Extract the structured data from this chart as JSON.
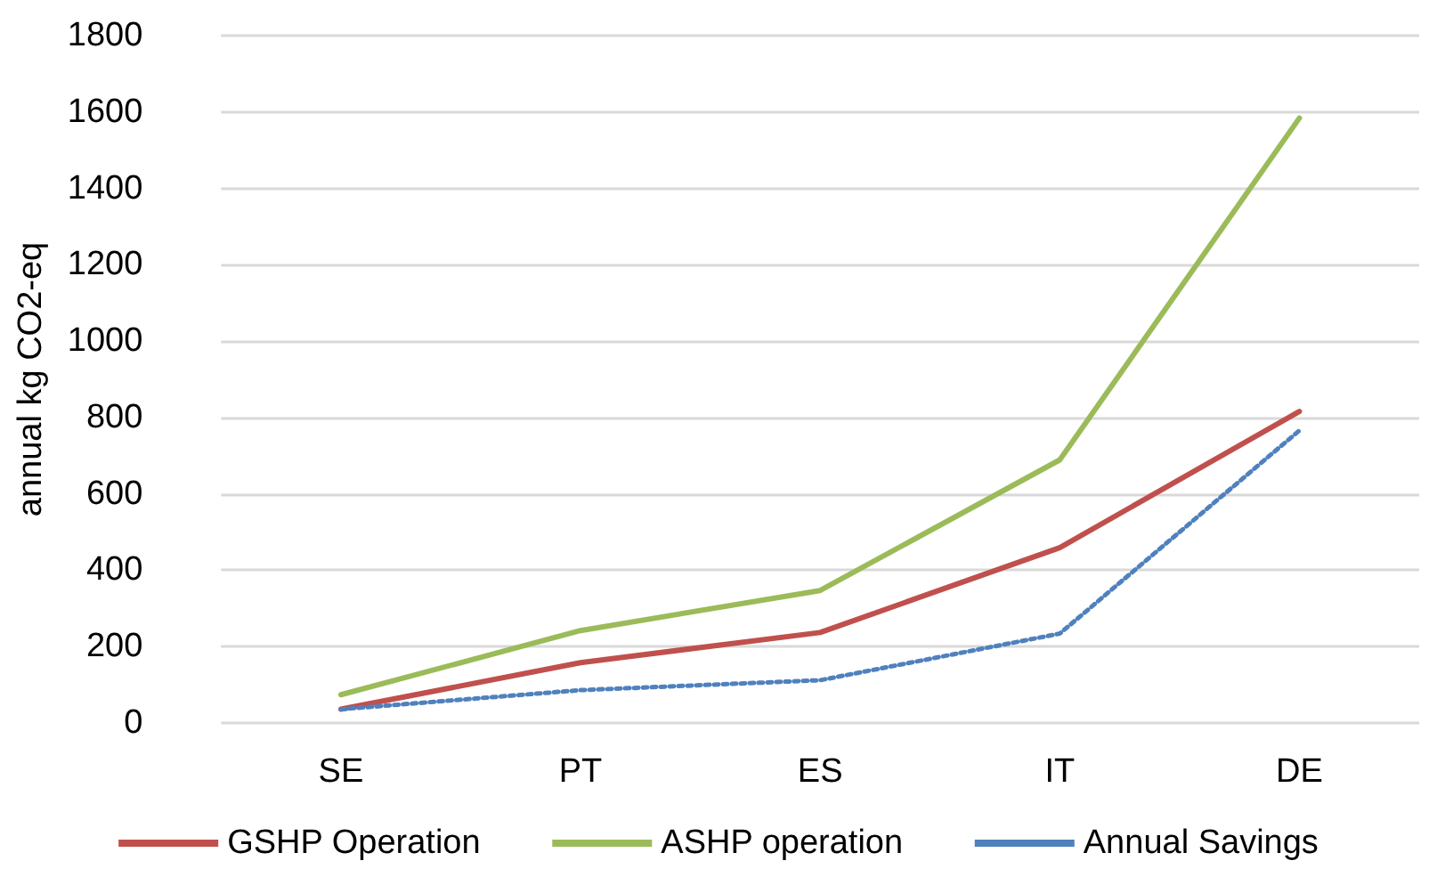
{
  "chart_data": {
    "type": "line",
    "ylabel": "annual kg CO2-eq",
    "categories": [
      "SE",
      "PT",
      "ES",
      "IT",
      "DE"
    ],
    "series": [
      {
        "name": "GSHP Operation",
        "color": "#c0504d",
        "values": [
          36,
          158,
          237,
          459,
          816
        ]
      },
      {
        "name": "ASHP operation",
        "color": "#9bbb59",
        "values": [
          74,
          242,
          347,
          689,
          1584
        ]
      },
      {
        "name": "Annual Savings",
        "color": "#4f81bd",
        "values": [
          36,
          86,
          112,
          234,
          766
        ],
        "line_style": "dotted"
      }
    ],
    "ylim": [
      0,
      1800
    ],
    "yticks": [
      0,
      200,
      400,
      600,
      800,
      1000,
      1200,
      1400,
      1600,
      1800
    ],
    "grid": "y",
    "legend": "bottom",
    "marker": "none",
    "line_style": "solid"
  }
}
